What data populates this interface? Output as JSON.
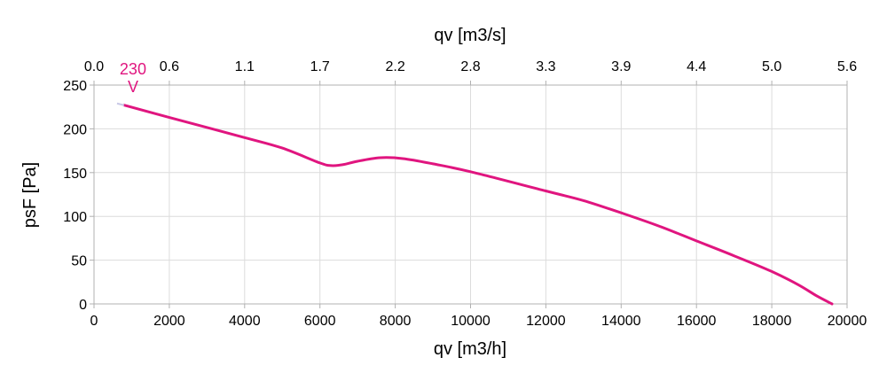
{
  "chart_data": {
    "type": "line",
    "xlabel": "qv [m3/h]",
    "ylabel": "psF [Pa]",
    "x2label": "qv [m3/s]",
    "xlim": [
      0,
      20000
    ],
    "ylim": [
      0,
      250
    ],
    "x_ticks": [
      0,
      2000,
      4000,
      6000,
      8000,
      10000,
      12000,
      14000,
      16000,
      18000,
      20000
    ],
    "x_tick_labels": [
      "0",
      "2000",
      "4000",
      "6000",
      "8000",
      "10000",
      "12000",
      "14000",
      "16000",
      "18000",
      "20000"
    ],
    "y_ticks": [
      0,
      50,
      100,
      150,
      200,
      250
    ],
    "y_tick_labels": [
      "0",
      "50",
      "100",
      "150",
      "200",
      "250"
    ],
    "x2_tick_labels": [
      "0.0",
      "0.6",
      "1.1",
      "1.7",
      "2.2",
      "2.8",
      "3.3",
      "3.9",
      "4.4",
      "5.0",
      "5.6"
    ],
    "grid": true,
    "series": [
      {
        "name": "230 V",
        "color": "#e0157f",
        "x": [
          800,
          2000,
          4000,
          5000,
          6000,
          6300,
          6600,
          7000,
          7600,
          8200,
          9000,
          10000,
          12000,
          13000,
          14000,
          15000,
          16000,
          17000,
          18000,
          18700,
          19200,
          19600
        ],
        "y": [
          227,
          213,
          190,
          178,
          161,
          158,
          159,
          163,
          167,
          166,
          160,
          151,
          129,
          118,
          104,
          89,
          72,
          55,
          37,
          22,
          9,
          0
        ]
      }
    ]
  }
}
